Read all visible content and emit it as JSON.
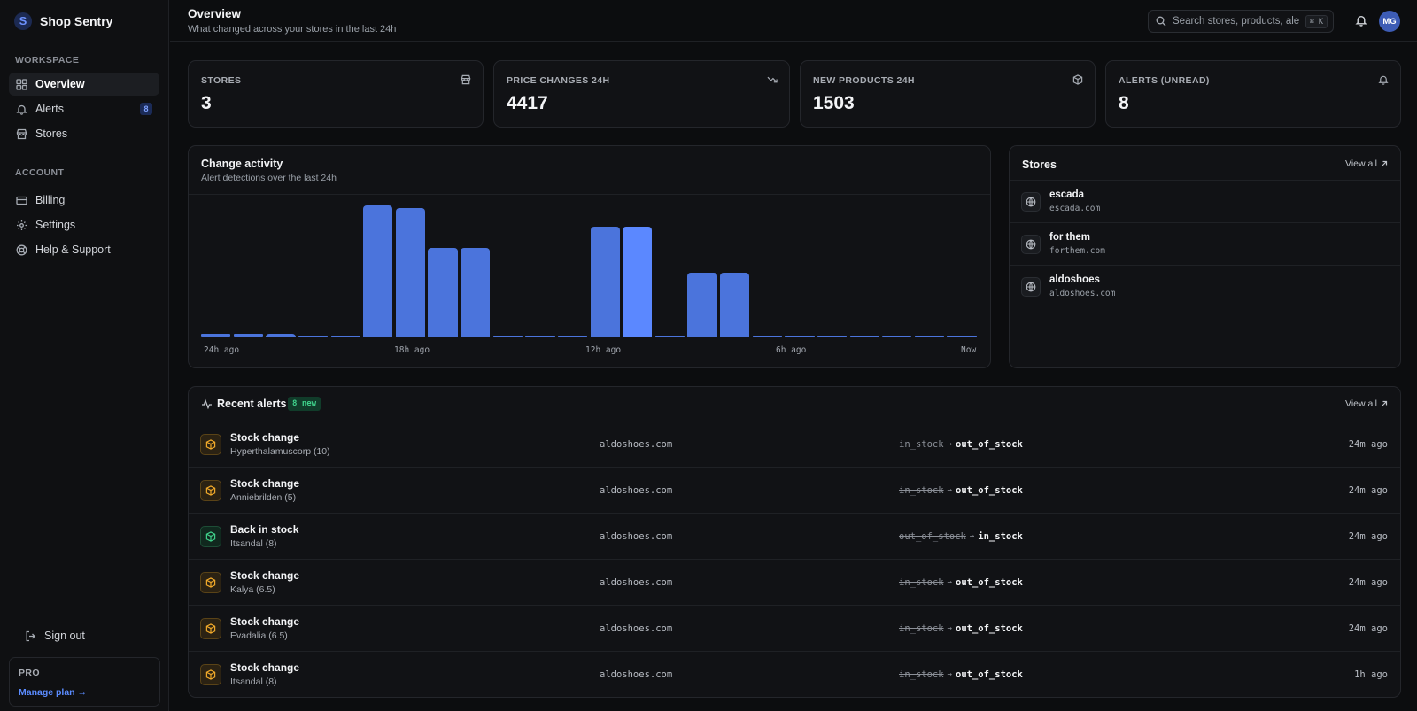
{
  "brand": {
    "name": "Shop Sentry",
    "logo_letter": "S"
  },
  "sidebar": {
    "workspace_label": "WORKSPACE",
    "workspace_items": [
      {
        "label": "Overview",
        "icon": "grid-icon",
        "active": true
      },
      {
        "label": "Alerts",
        "icon": "bell-icon",
        "badge": "8"
      },
      {
        "label": "Stores",
        "icon": "store-icon"
      }
    ],
    "account_label": "ACCOUNT",
    "account_items": [
      {
        "label": "Billing",
        "icon": "credit-card-icon"
      },
      {
        "label": "Settings",
        "icon": "gear-icon"
      },
      {
        "label": "Help & Support",
        "icon": "lifebuoy-icon"
      }
    ],
    "signout_label": "Sign out",
    "plan": {
      "label": "PRO",
      "link": "Manage plan →"
    }
  },
  "header": {
    "title": "Overview",
    "subtitle": "What changed across your stores in the last 24h",
    "search_placeholder": "Search stores, products, ale",
    "search_shortcut": "⌘ K",
    "avatar_initials": "MG"
  },
  "stats": [
    {
      "label": "STORES",
      "value": "3",
      "icon": "store-icon"
    },
    {
      "label": "PRICE CHANGES 24H",
      "value": "4417",
      "icon": "trending-down-icon"
    },
    {
      "label": "NEW PRODUCTS 24H",
      "value": "1503",
      "icon": "package-icon"
    },
    {
      "label": "ALERTS (UNREAD)",
      "value": "8",
      "icon": "bell-icon"
    }
  ],
  "activity": {
    "title": "Change activity",
    "subtitle": "Alert detections over the last 24h"
  },
  "chart_data": {
    "type": "bar",
    "title": "Change activity",
    "subtitle": "Alert detections over the last 24h",
    "x_tick_labels": [
      "24h ago",
      "18h ago",
      "12h ago",
      "6h ago",
      "Now"
    ],
    "values": [
      2.5,
      2.5,
      3,
      1,
      0,
      100,
      98,
      68,
      68,
      0.5,
      0.5,
      0.5,
      84,
      84,
      0.5,
      49,
      49,
      0.5,
      0.5,
      0.5,
      0.5,
      1.5,
      0.5,
      0.5
    ],
    "highlight_index": 13,
    "ylim": [
      0,
      100
    ],
    "color": "#4b74dc",
    "highlight_color": "#5b88ff"
  },
  "stores_panel": {
    "title": "Stores",
    "view_all": "View all",
    "items": [
      {
        "name": "escada",
        "domain": "escada.com"
      },
      {
        "name": "for them",
        "domain": "forthem.com"
      },
      {
        "name": "aldoshoes",
        "domain": "aldoshoes.com"
      }
    ]
  },
  "alerts_panel": {
    "title": "Recent alerts",
    "badge": "8 new",
    "view_all": "View all",
    "items": [
      {
        "type": "warn",
        "title": "Stock change",
        "product": "Hyperthalamuscorp (10)",
        "domain": "aldoshoes.com",
        "from": "in_stock",
        "to": "out_of_stock",
        "time": "24m ago"
      },
      {
        "type": "warn",
        "title": "Stock change",
        "product": "Anniebrilden (5)",
        "domain": "aldoshoes.com",
        "from": "in_stock",
        "to": "out_of_stock",
        "time": "24m ago"
      },
      {
        "type": "ok",
        "title": "Back in stock",
        "product": "Itsandal (8)",
        "domain": "aldoshoes.com",
        "from": "out_of_stock",
        "to": "in_stock",
        "time": "24m ago"
      },
      {
        "type": "warn",
        "title": "Stock change",
        "product": "Kalya (6.5)",
        "domain": "aldoshoes.com",
        "from": "in_stock",
        "to": "out_of_stock",
        "time": "24m ago"
      },
      {
        "type": "warn",
        "title": "Stock change",
        "product": "Evadalia (6.5)",
        "domain": "aldoshoes.com",
        "from": "in_stock",
        "to": "out_of_stock",
        "time": "24m ago"
      },
      {
        "type": "warn",
        "title": "Stock change",
        "product": "Itsandal (8)",
        "domain": "aldoshoes.com",
        "from": "in_stock",
        "to": "out_of_stock",
        "time": "1h ago"
      }
    ]
  }
}
